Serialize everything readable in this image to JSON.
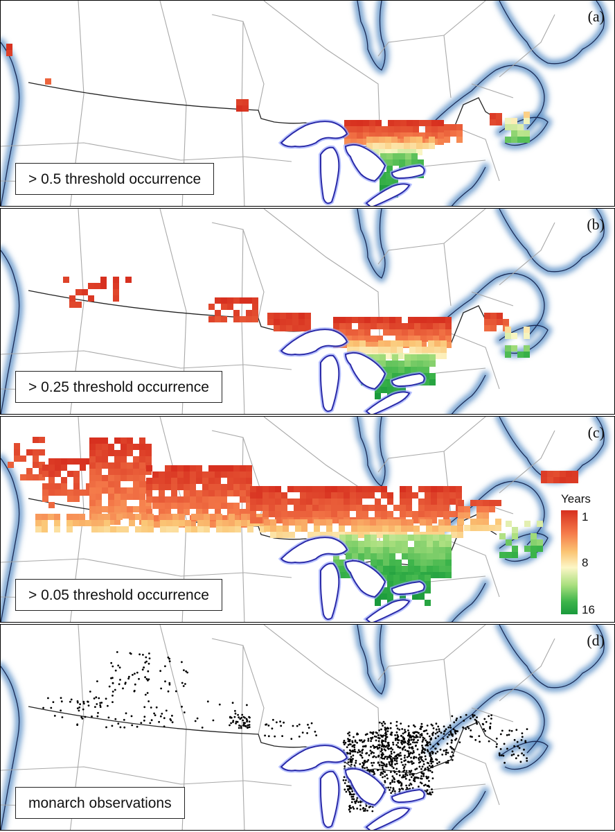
{
  "panels": [
    {
      "label": "(a)",
      "caption": "> 0.5 threshold occurrence"
    },
    {
      "label": "(b)",
      "caption": "> 0.25 threshold occurrence"
    },
    {
      "label": "(c)",
      "caption": "> 0.05 threshold occurrence"
    },
    {
      "label": "(d)",
      "caption": "monarch observations"
    }
  ],
  "legend": {
    "title": "Years",
    "ticks": [
      "1",
      "8",
      "16"
    ],
    "color_low": "#d7301f",
    "color_mid": "#fcf6c6",
    "color_high": "#1a9a3c"
  },
  "colors": {
    "water_glow": "#5b8fc6",
    "great_lakes_outline": "#2a2aa8",
    "border_line": "#a8a8a8",
    "national_border": "#222222"
  }
}
